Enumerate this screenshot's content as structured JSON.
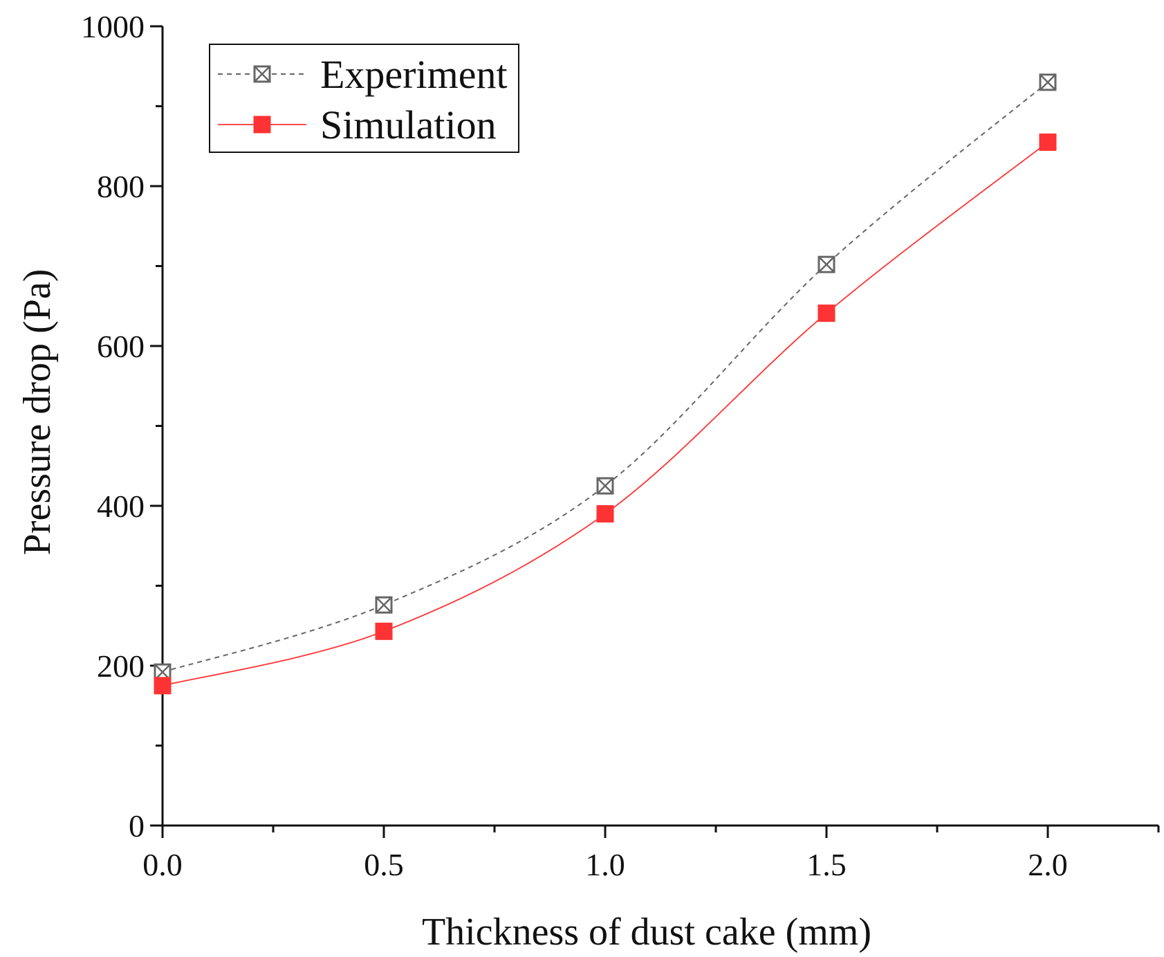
{
  "chart_data": {
    "type": "line",
    "title": "",
    "xlabel": "Thickness of dust cake (mm)",
    "ylabel": "Pressure drop (Pa)",
    "xlim": [
      0,
      2.25
    ],
    "ylim": [
      0,
      1000
    ],
    "x_ticks": [
      0.0,
      0.5,
      1.0,
      1.5,
      2.0
    ],
    "x_tick_labels": [
      "0.0",
      "0.5",
      "1.0",
      "1.5",
      "2.0"
    ],
    "x_minor_ticks": [
      0.25,
      0.75,
      1.25,
      1.75,
      2.25
    ],
    "y_ticks": [
      0,
      200,
      400,
      600,
      800,
      1000
    ],
    "y_tick_labels": [
      "0",
      "200",
      "400",
      "600",
      "800",
      "1000"
    ],
    "y_minor_ticks": [
      100,
      300,
      500,
      700,
      900
    ],
    "grid": false,
    "legend_position": "top-left",
    "x": [
      0.0,
      0.5,
      1.0,
      1.5,
      2.0
    ],
    "series": [
      {
        "name": "Experiment",
        "values": [
          192,
          276,
          425,
          702,
          930
        ],
        "color": "#666666",
        "marker": "square-x",
        "line_style": "dashed"
      },
      {
        "name": "Simulation",
        "values": [
          175,
          243,
          390,
          641,
          855
        ],
        "color": "#ff3333",
        "marker": "filled-square",
        "line_style": "solid"
      }
    ]
  }
}
